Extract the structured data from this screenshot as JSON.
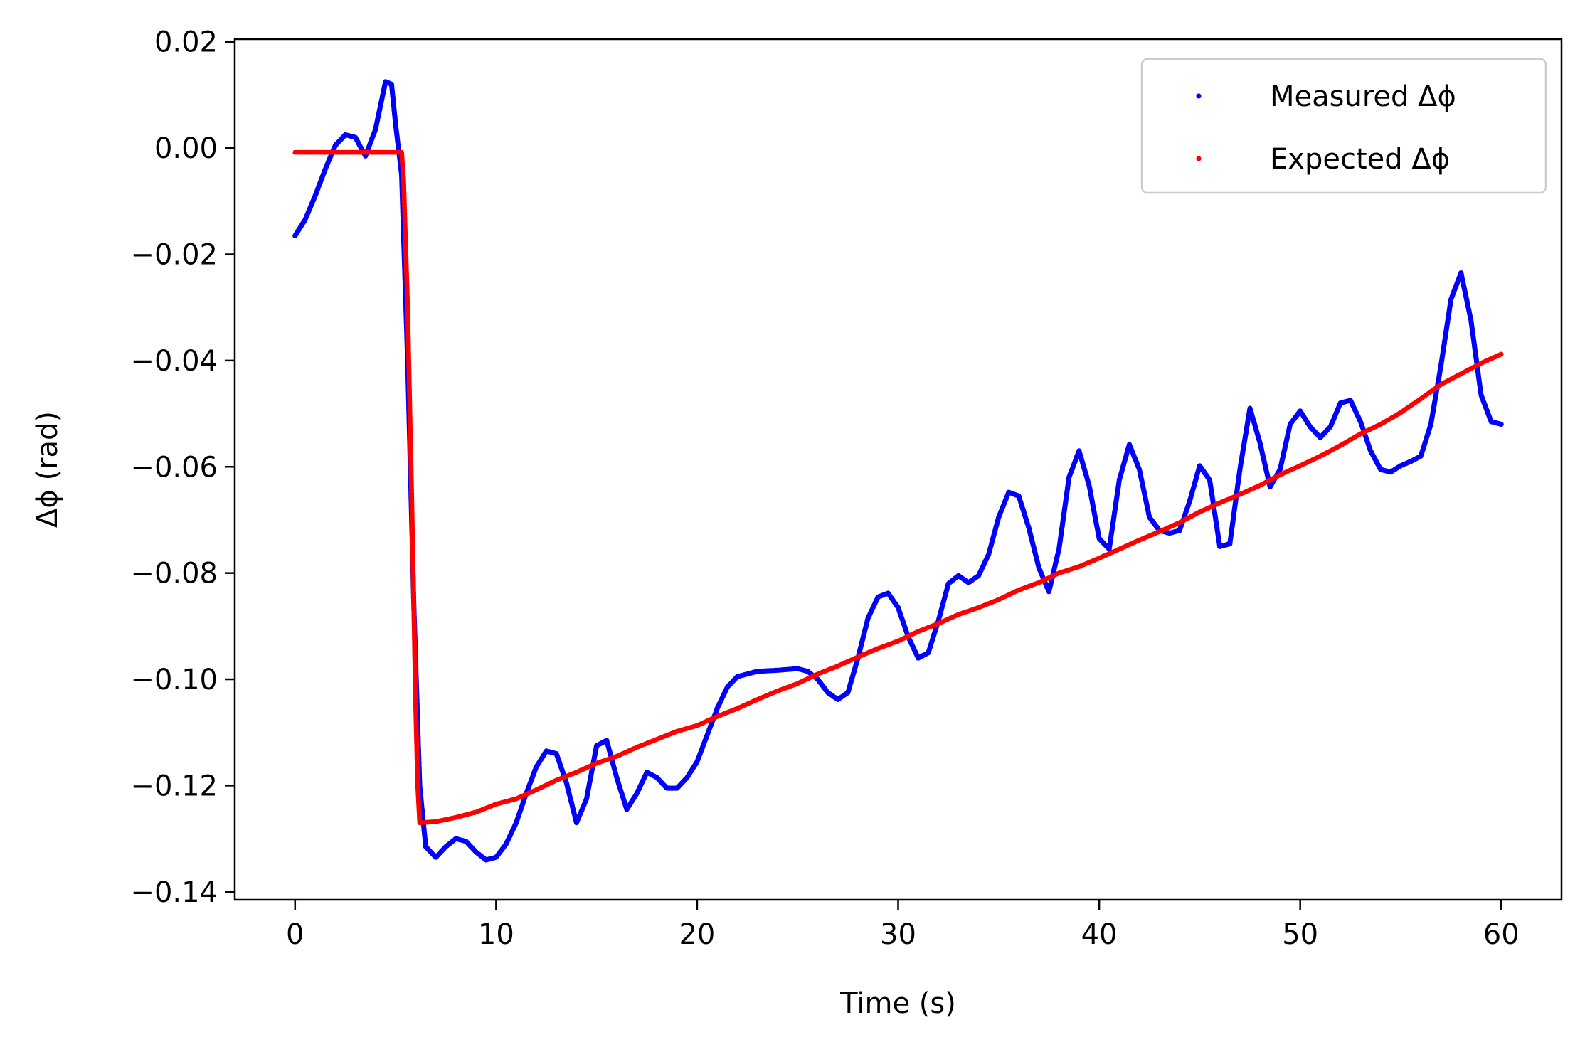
{
  "chart_data": {
    "type": "scatter",
    "title": "",
    "xlabel": "Time (s)",
    "ylabel": "Δϕ (rad)",
    "xlim": [
      -3,
      63
    ],
    "ylim": [
      -0.1415,
      0.0205
    ],
    "xticks": [
      0,
      10,
      20,
      30,
      40,
      50,
      60
    ],
    "xtick_labels": [
      "0",
      "10",
      "20",
      "30",
      "40",
      "50",
      "60"
    ],
    "yticks": [
      0.02,
      0.0,
      -0.02,
      -0.04,
      -0.06,
      -0.08,
      -0.1,
      -0.12,
      -0.14
    ],
    "ytick_labels": [
      "0.02",
      "0.00",
      "−0.02",
      "−0.04",
      "−0.06",
      "−0.08",
      "−0.10",
      "−0.12",
      "−0.14"
    ],
    "grid": false,
    "legend_position": "top-right",
    "series": [
      {
        "name": "Measured Δϕ",
        "color": "#0000ff",
        "points": [
          [
            0.0,
            -0.0165
          ],
          [
            0.5,
            -0.0135
          ],
          [
            1.0,
            -0.009
          ],
          [
            1.5,
            -0.004
          ],
          [
            2.0,
            0.0005
          ],
          [
            2.5,
            0.0025
          ],
          [
            3.0,
            0.002
          ],
          [
            3.5,
            -0.0015
          ],
          [
            4.0,
            0.0035
          ],
          [
            4.5,
            0.0125
          ],
          [
            4.8,
            0.012
          ],
          [
            5.0,
            0.0045
          ],
          [
            5.3,
            -0.005
          ],
          [
            5.6,
            -0.04
          ],
          [
            5.9,
            -0.085
          ],
          [
            6.2,
            -0.12
          ],
          [
            6.5,
            -0.1315
          ],
          [
            7.0,
            -0.1335
          ],
          [
            7.5,
            -0.1315
          ],
          [
            8.0,
            -0.13
          ],
          [
            8.5,
            -0.1305
          ],
          [
            9.0,
            -0.1325
          ],
          [
            9.5,
            -0.134
          ],
          [
            10.0,
            -0.1335
          ],
          [
            10.5,
            -0.131
          ],
          [
            11.0,
            -0.127
          ],
          [
            11.5,
            -0.1215
          ],
          [
            12.0,
            -0.1165
          ],
          [
            12.5,
            -0.1135
          ],
          [
            13.0,
            -0.114
          ],
          [
            13.5,
            -0.1195
          ],
          [
            14.0,
            -0.127
          ],
          [
            14.5,
            -0.1225
          ],
          [
            15.0,
            -0.1125
          ],
          [
            15.5,
            -0.1115
          ],
          [
            16.0,
            -0.1185
          ],
          [
            16.5,
            -0.1245
          ],
          [
            17.0,
            -0.1215
          ],
          [
            17.5,
            -0.1175
          ],
          [
            18.0,
            -0.1185
          ],
          [
            18.5,
            -0.1205
          ],
          [
            19.0,
            -0.1205
          ],
          [
            19.5,
            -0.1185
          ],
          [
            20.0,
            -0.1155
          ],
          [
            20.5,
            -0.1105
          ],
          [
            21.0,
            -0.1055
          ],
          [
            21.5,
            -0.1015
          ],
          [
            22.0,
            -0.0995
          ],
          [
            23.0,
            -0.0985
          ],
          [
            24.0,
            -0.0983
          ],
          [
            25.0,
            -0.098
          ],
          [
            25.5,
            -0.0985
          ],
          [
            26.0,
            -0.1
          ],
          [
            26.5,
            -0.1025
          ],
          [
            27.0,
            -0.1038
          ],
          [
            27.5,
            -0.1025
          ],
          [
            28.0,
            -0.096
          ],
          [
            28.5,
            -0.0885
          ],
          [
            29.0,
            -0.0845
          ],
          [
            29.5,
            -0.0838
          ],
          [
            30.0,
            -0.0865
          ],
          [
            30.5,
            -0.092
          ],
          [
            31.0,
            -0.096
          ],
          [
            31.5,
            -0.095
          ],
          [
            32.0,
            -0.089
          ],
          [
            32.5,
            -0.082
          ],
          [
            33.0,
            -0.0805
          ],
          [
            33.5,
            -0.0818
          ],
          [
            34.0,
            -0.0805
          ],
          [
            34.5,
            -0.0765
          ],
          [
            35.0,
            -0.0695
          ],
          [
            35.5,
            -0.0648
          ],
          [
            36.0,
            -0.0655
          ],
          [
            36.5,
            -0.0715
          ],
          [
            37.0,
            -0.079
          ],
          [
            37.5,
            -0.0835
          ],
          [
            38.0,
            -0.0755
          ],
          [
            38.5,
            -0.062
          ],
          [
            39.0,
            -0.057
          ],
          [
            39.5,
            -0.0635
          ],
          [
            40.0,
            -0.0735
          ],
          [
            40.5,
            -0.0755
          ],
          [
            41.0,
            -0.0625
          ],
          [
            41.5,
            -0.0558
          ],
          [
            42.0,
            -0.0605
          ],
          [
            42.5,
            -0.0695
          ],
          [
            43.0,
            -0.072
          ],
          [
            43.5,
            -0.0725
          ],
          [
            44.0,
            -0.072
          ],
          [
            44.5,
            -0.0665
          ],
          [
            45.0,
            -0.0598
          ],
          [
            45.5,
            -0.0625
          ],
          [
            46.0,
            -0.075
          ],
          [
            46.5,
            -0.0745
          ],
          [
            47.0,
            -0.0605
          ],
          [
            47.5,
            -0.049
          ],
          [
            48.0,
            -0.0555
          ],
          [
            48.5,
            -0.0638
          ],
          [
            49.0,
            -0.0605
          ],
          [
            49.5,
            -0.052
          ],
          [
            50.0,
            -0.0495
          ],
          [
            50.5,
            -0.0525
          ],
          [
            51.0,
            -0.0545
          ],
          [
            51.5,
            -0.0525
          ],
          [
            52.0,
            -0.048
          ],
          [
            52.5,
            -0.0475
          ],
          [
            53.0,
            -0.0515
          ],
          [
            53.5,
            -0.057
          ],
          [
            54.0,
            -0.0605
          ],
          [
            54.5,
            -0.061
          ],
          [
            55.0,
            -0.0598
          ],
          [
            55.5,
            -0.059
          ],
          [
            56.0,
            -0.058
          ],
          [
            56.5,
            -0.052
          ],
          [
            57.0,
            -0.041
          ],
          [
            57.5,
            -0.0285
          ],
          [
            58.0,
            -0.0235
          ],
          [
            58.5,
            -0.0325
          ],
          [
            59.0,
            -0.0465
          ],
          [
            59.5,
            -0.0515
          ],
          [
            60.0,
            -0.052
          ]
        ]
      },
      {
        "name": "Expected Δϕ",
        "color": "#ff0000",
        "points": [
          [
            0.0,
            -0.0008
          ],
          [
            1.0,
            -0.0008
          ],
          [
            2.0,
            -0.0008
          ],
          [
            3.0,
            -0.0008
          ],
          [
            4.0,
            -0.0008
          ],
          [
            5.0,
            -0.0008
          ],
          [
            5.3,
            -0.0008
          ],
          [
            5.4,
            -0.006
          ],
          [
            5.6,
            -0.03
          ],
          [
            5.8,
            -0.065
          ],
          [
            6.0,
            -0.105
          ],
          [
            6.1,
            -0.12
          ],
          [
            6.2,
            -0.127
          ],
          [
            7.0,
            -0.1268
          ],
          [
            8.0,
            -0.126
          ],
          [
            9.0,
            -0.125
          ],
          [
            10.0,
            -0.1235
          ],
          [
            11.0,
            -0.1225
          ],
          [
            12.0,
            -0.1208
          ],
          [
            13.0,
            -0.119
          ],
          [
            14.0,
            -0.1175
          ],
          [
            15.0,
            -0.1158
          ],
          [
            16.0,
            -0.1145
          ],
          [
            17.0,
            -0.1128
          ],
          [
            18.0,
            -0.1113
          ],
          [
            19.0,
            -0.1098
          ],
          [
            20.0,
            -0.1087
          ],
          [
            21.0,
            -0.107
          ],
          [
            22.0,
            -0.1055
          ],
          [
            23.0,
            -0.1038
          ],
          [
            24.0,
            -0.1022
          ],
          [
            25.0,
            -0.1008
          ],
          [
            26.0,
            -0.099
          ],
          [
            27.0,
            -0.0975
          ],
          [
            28.0,
            -0.0958
          ],
          [
            29.0,
            -0.0942
          ],
          [
            30.0,
            -0.0928
          ],
          [
            31.0,
            -0.091
          ],
          [
            32.0,
            -0.0895
          ],
          [
            33.0,
            -0.0878
          ],
          [
            34.0,
            -0.0865
          ],
          [
            35.0,
            -0.085
          ],
          [
            36.0,
            -0.0832
          ],
          [
            37.0,
            -0.0818
          ],
          [
            38.0,
            -0.08
          ],
          [
            39.0,
            -0.0788
          ],
          [
            40.0,
            -0.0772
          ],
          [
            41.0,
            -0.0755
          ],
          [
            42.0,
            -0.0738
          ],
          [
            43.0,
            -0.0722
          ],
          [
            44.0,
            -0.0705
          ],
          [
            45.0,
            -0.0685
          ],
          [
            46.0,
            -0.0668
          ],
          [
            47.0,
            -0.0652
          ],
          [
            48.0,
            -0.0635
          ],
          [
            49.0,
            -0.0615
          ],
          [
            50.0,
            -0.0598
          ],
          [
            51.0,
            -0.058
          ],
          [
            52.0,
            -0.056
          ],
          [
            53.0,
            -0.0538
          ],
          [
            54.0,
            -0.052
          ],
          [
            55.0,
            -0.0498
          ],
          [
            56.0,
            -0.0472
          ],
          [
            57.0,
            -0.0445
          ],
          [
            58.0,
            -0.0425
          ],
          [
            59.0,
            -0.0405
          ],
          [
            60.0,
            -0.0388
          ]
        ]
      }
    ]
  }
}
